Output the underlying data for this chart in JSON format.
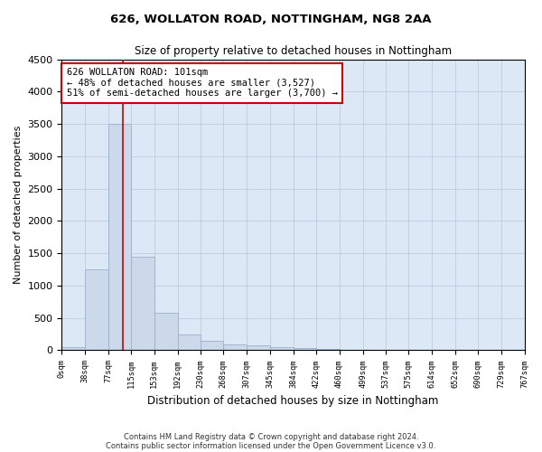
{
  "title1": "626, WOLLATON ROAD, NOTTINGHAM, NG8 2AA",
  "title2": "Size of property relative to detached houses in Nottingham",
  "xlabel": "Distribution of detached houses by size in Nottingham",
  "ylabel": "Number of detached properties",
  "bar_color": "#ccd9ea",
  "bar_edge_color": "#9ab0cc",
  "vline_x": 101,
  "vline_color": "#cc0000",
  "annotation_line1": "626 WOLLATON ROAD: 101sqm",
  "annotation_line2": "← 48% of detached houses are smaller (3,527)",
  "annotation_line3": "51% of semi-detached houses are larger (3,700) →",
  "annotation_box_color": "#ffffff",
  "annotation_box_edge_color": "#cc0000",
  "bin_edges": [
    0,
    38,
    77,
    115,
    153,
    192,
    230,
    268,
    307,
    345,
    384,
    422,
    460,
    499,
    537,
    575,
    614,
    652,
    690,
    729,
    767
  ],
  "bar_heights": [
    50,
    1250,
    3500,
    1450,
    575,
    250,
    150,
    90,
    70,
    45,
    30,
    20,
    5,
    0,
    0,
    0,
    0,
    0,
    0,
    0
  ],
  "ylim": [
    0,
    4500
  ],
  "yticks": [
    0,
    500,
    1000,
    1500,
    2000,
    2500,
    3000,
    3500,
    4000,
    4500
  ],
  "footnote1": "Contains HM Land Registry data © Crown copyright and database right 2024.",
  "footnote2": "Contains public sector information licensed under the Open Government Licence v3.0.",
  "bg_color": "#ffffff",
  "axes_bg_color": "#dce8f5",
  "grid_color": "#b8c8d8"
}
